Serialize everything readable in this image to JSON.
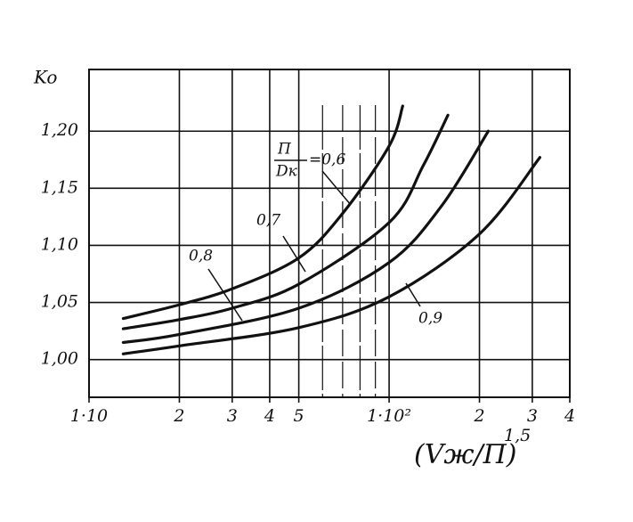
{
  "chart_data": {
    "type": "line",
    "y_label": "Ko",
    "x_label": {
      "text": "(Vж/П)",
      "exponent": "1,5"
    },
    "x_log": true,
    "xlim": [
      10,
      400
    ],
    "ylim": [
      0.967,
      1.254
    ],
    "xticks": [
      {
        "value": 10,
        "label": "1·10"
      },
      2,
      3,
      4,
      5,
      {
        "value": 100,
        "label": "1·10²"
      },
      2,
      3,
      4
    ],
    "x_minor_ticks": [
      60,
      70,
      80,
      90
    ],
    "yticks": [
      {
        "value": 1.0,
        "label": "1,00"
      },
      {
        "value": 1.05,
        "label": "1,05"
      },
      {
        "value": 1.1,
        "label": "1,10"
      },
      {
        "value": 1.15,
        "label": "1,15"
      },
      {
        "value": 1.2,
        "label": "1,20"
      }
    ],
    "grid": true,
    "param_label": {
      "numerator": "П",
      "denominator": "Dк"
    },
    "series": [
      {
        "name": "=0,6",
        "color": "#111",
        "x": [
          13,
          20,
          30,
          50,
          70,
          100,
          111
        ],
        "values": [
          1.036,
          1.048,
          1.062,
          1.089,
          1.128,
          1.187,
          1.222
        ]
      },
      {
        "name": "0,7",
        "color": "#111",
        "x": [
          13,
          20,
          30,
          50,
          100,
          130,
          157
        ],
        "values": [
          1.027,
          1.035,
          1.045,
          1.066,
          1.12,
          1.17,
          1.214
        ]
      },
      {
        "name": "0,8",
        "color": "#111",
        "x": [
          13,
          20,
          50,
          100,
          150,
          214
        ],
        "values": [
          1.015,
          1.022,
          1.045,
          1.085,
          1.135,
          1.2
        ]
      },
      {
        "name": "0,9",
        "color": "#111",
        "x": [
          13,
          20,
          50,
          100,
          200,
          318
        ],
        "values": [
          1.005,
          1.012,
          1.028,
          1.055,
          1.11,
          1.177
        ]
      }
    ]
  }
}
